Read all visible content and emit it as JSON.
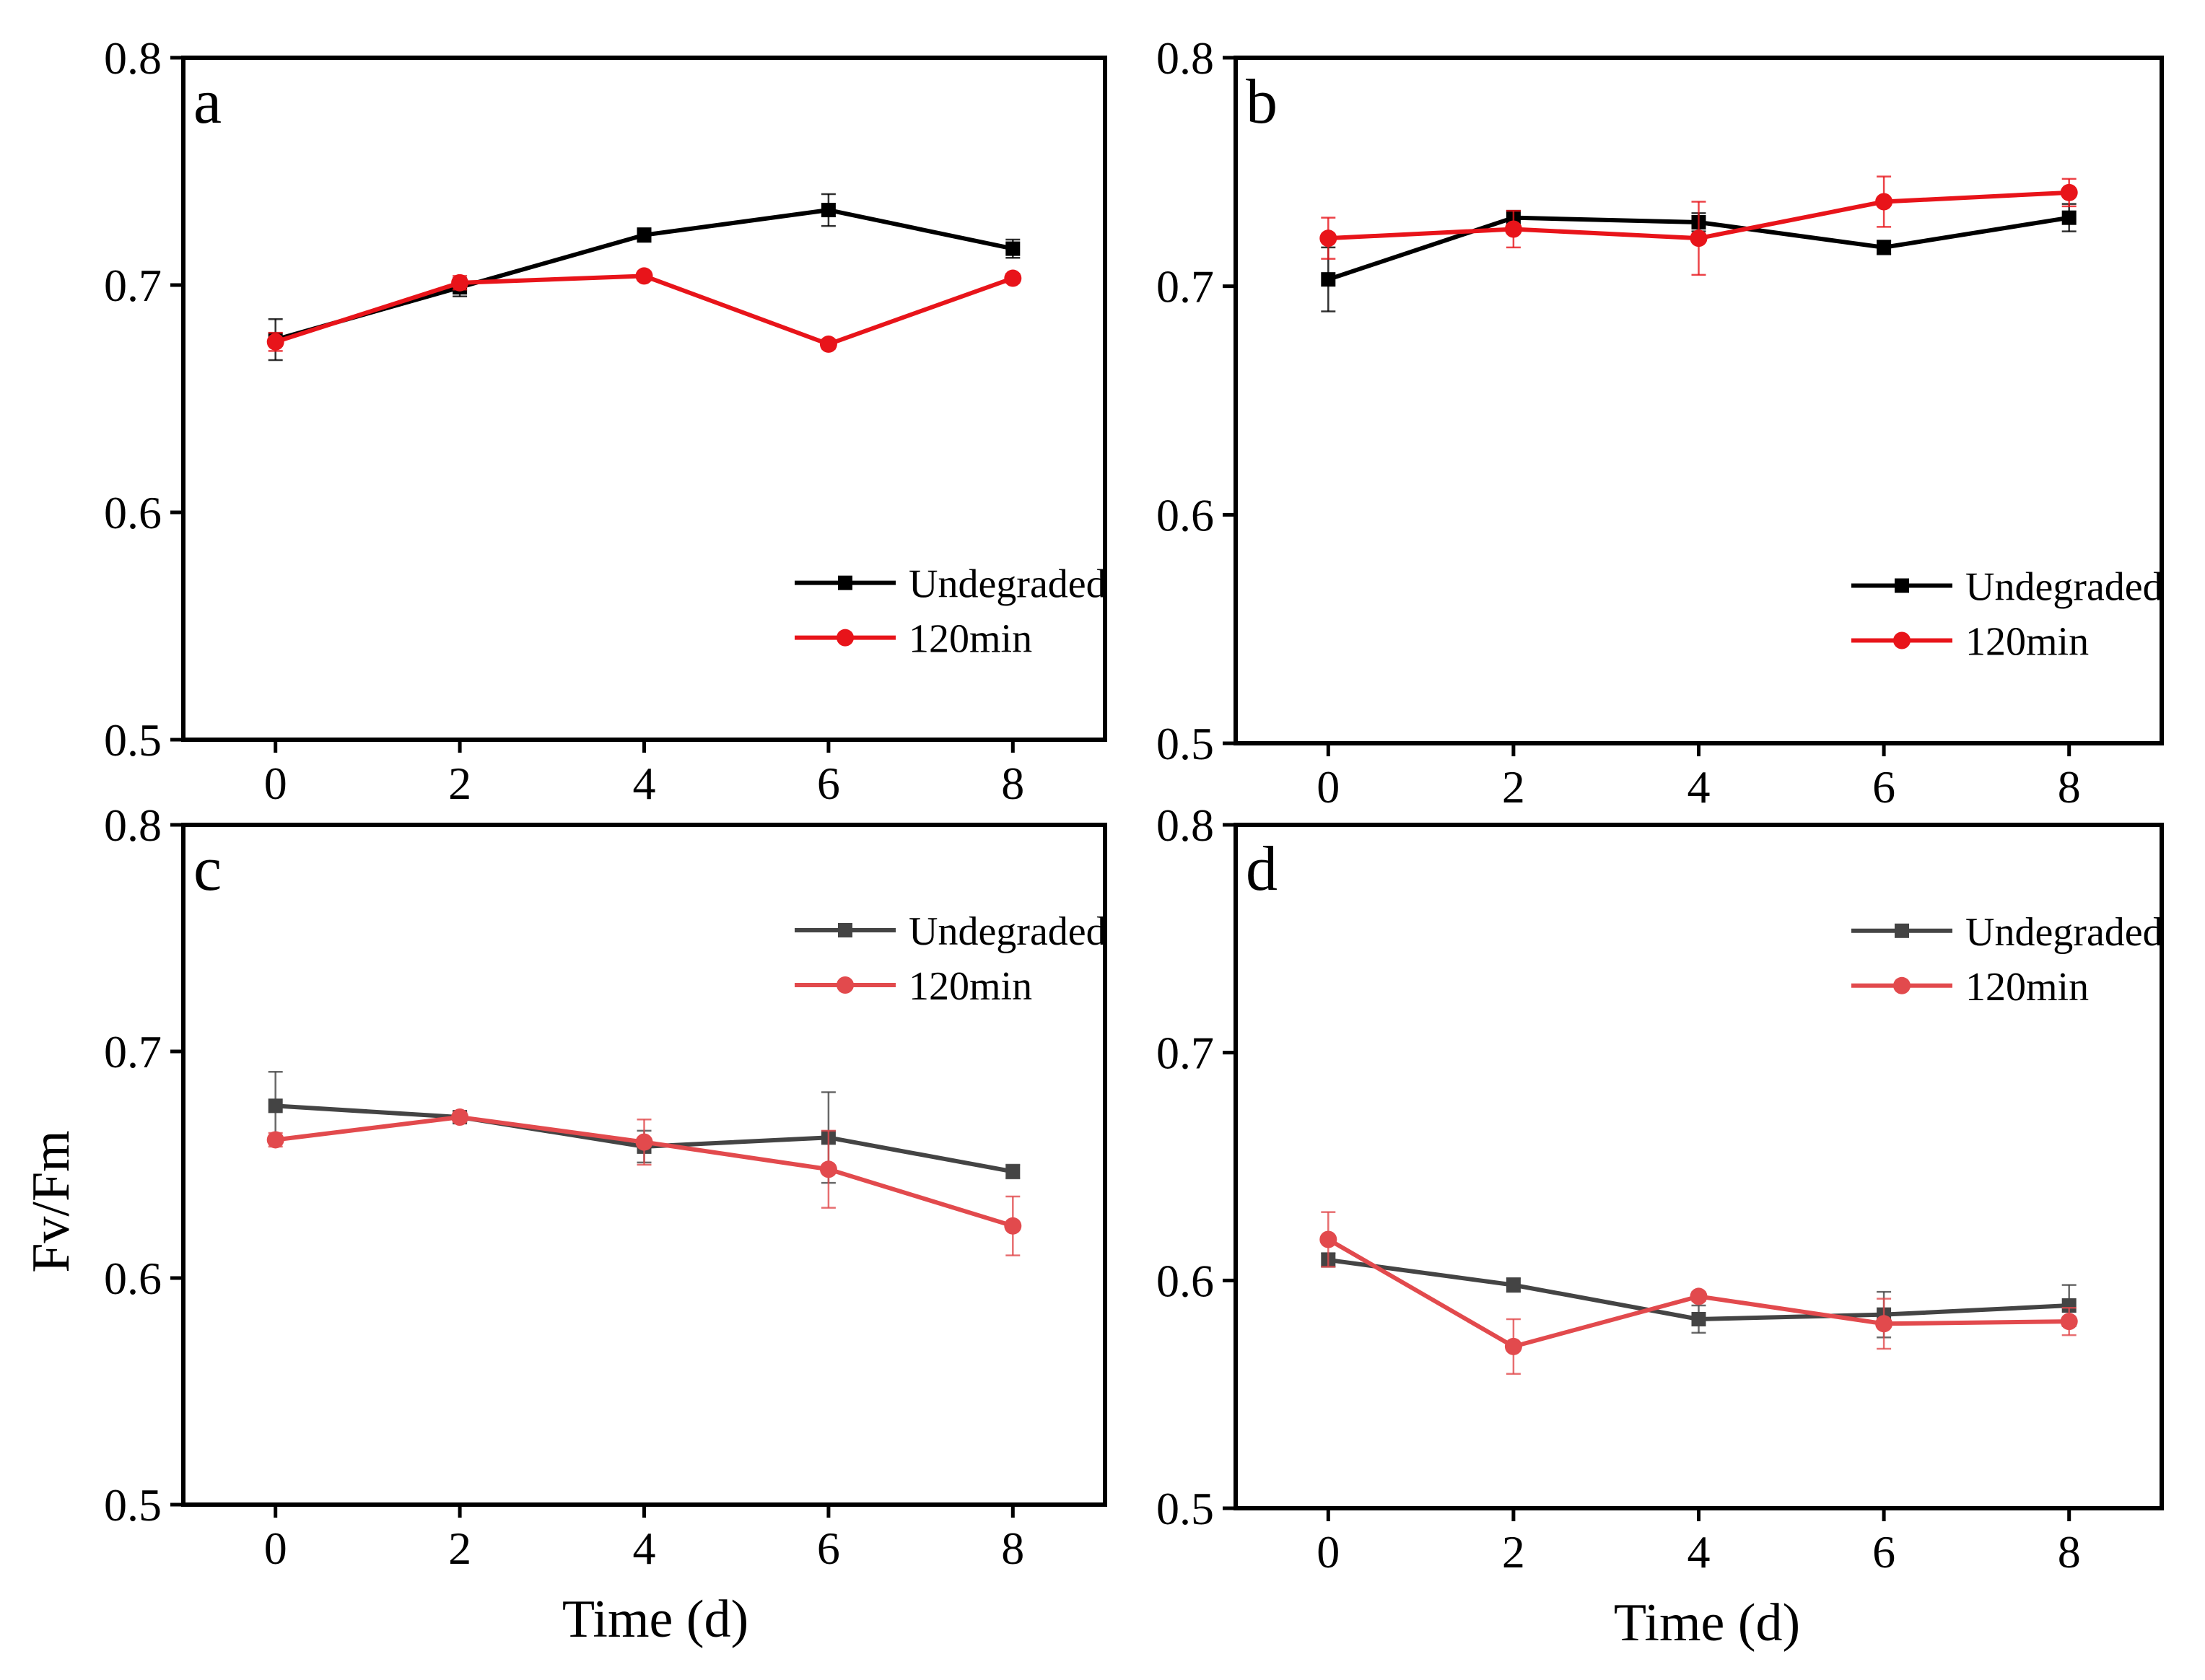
{
  "figure": {
    "ylabel": "Fv/Fm",
    "xlabel": "Time (d)"
  },
  "colors": {
    "undegraded_dark": "#000000",
    "degraded_red": "#e8141a",
    "undegraded_gray": "#444444",
    "degraded_light_red": "#e24a4d"
  },
  "chart_data": [
    {
      "panel": "a",
      "type": "line",
      "x": [
        0,
        2,
        4,
        6,
        8
      ],
      "xticks": [
        "0",
        "2",
        "4",
        "6",
        "8"
      ],
      "xlim": [
        -1,
        9
      ],
      "ylim": [
        0.5,
        0.8
      ],
      "yticks": [
        "0.5",
        "0.6",
        "0.7",
        "0.8"
      ],
      "legend_position": "center-right",
      "series": [
        {
          "name": "Undegraded",
          "marker": "square",
          "color": "#000000",
          "values": [
            0.676,
            0.699,
            0.722,
            0.733,
            0.716
          ],
          "errors": [
            0.009,
            0.004,
            0.003,
            0.007,
            0.004
          ]
        },
        {
          "name": "120min",
          "marker": "circle",
          "color": "#e8141a",
          "values": [
            0.675,
            0.701,
            0.704,
            0.674,
            0.703
          ],
          "errors": [
            0.004,
            0.003,
            0.002,
            0.002,
            0.002
          ]
        }
      ]
    },
    {
      "panel": "b",
      "type": "line",
      "x": [
        0,
        2,
        4,
        6,
        8
      ],
      "xticks": [
        "0",
        "2",
        "4",
        "6",
        "8"
      ],
      "xlim": [
        -1,
        9
      ],
      "ylim": [
        0.5,
        0.8
      ],
      "yticks": [
        "0.5",
        "0.6",
        "0.7",
        "0.8"
      ],
      "legend_position": "center-right",
      "series": [
        {
          "name": "Undegraded",
          "marker": "square",
          "color": "#000000",
          "values": [
            0.703,
            0.73,
            0.728,
            0.717,
            0.73
          ],
          "errors": [
            0.014,
            0.003,
            0.004,
            0.003,
            0.006
          ]
        },
        {
          "name": "120min",
          "marker": "circle",
          "color": "#e8141a",
          "values": [
            0.721,
            0.725,
            0.721,
            0.737,
            0.741
          ],
          "errors": [
            0.009,
            0.008,
            0.016,
            0.011,
            0.006
          ]
        }
      ]
    },
    {
      "panel": "c",
      "type": "line",
      "x": [
        0,
        2,
        4,
        6,
        8
      ],
      "xticks": [
        "0",
        "2",
        "4",
        "6",
        "8"
      ],
      "xlim": [
        -1,
        9
      ],
      "ylim": [
        0.5,
        0.8
      ],
      "yticks": [
        "0.5",
        "0.6",
        "0.7",
        "0.8"
      ],
      "legend_position": "top-right",
      "series": [
        {
          "name": "Undegraded",
          "marker": "square",
          "color": "#444444",
          "values": [
            0.676,
            0.671,
            0.658,
            0.662,
            0.647
          ],
          "errors": [
            0.015,
            0.002,
            0.007,
            0.02,
            0.003
          ]
        },
        {
          "name": "120min",
          "marker": "circle",
          "color": "#e24a4d",
          "values": [
            0.661,
            0.671,
            0.66,
            0.648,
            0.623
          ],
          "errors": [
            0.003,
            0.002,
            0.01,
            0.017,
            0.013
          ]
        }
      ]
    },
    {
      "panel": "d",
      "type": "line",
      "x": [
        0,
        2,
        4,
        6,
        8
      ],
      "xticks": [
        "0",
        "2",
        "4",
        "6",
        "8"
      ],
      "xlim": [
        -1,
        9
      ],
      "ylim": [
        0.5,
        0.8
      ],
      "yticks": [
        "0.5",
        "0.6",
        "0.7",
        "0.8"
      ],
      "legend_position": "top-right",
      "series": [
        {
          "name": "Undegraded",
          "marker": "square",
          "color": "#444444",
          "values": [
            0.609,
            0.598,
            0.583,
            0.585,
            0.589
          ],
          "errors": [
            0.003,
            0.003,
            0.006,
            0.01,
            0.009
          ]
        },
        {
          "name": "120min",
          "marker": "circle",
          "color": "#e24a4d",
          "values": [
            0.618,
            0.571,
            0.593,
            0.581,
            0.582
          ],
          "errors": [
            0.012,
            0.012,
            0.002,
            0.011,
            0.006
          ]
        }
      ]
    }
  ]
}
